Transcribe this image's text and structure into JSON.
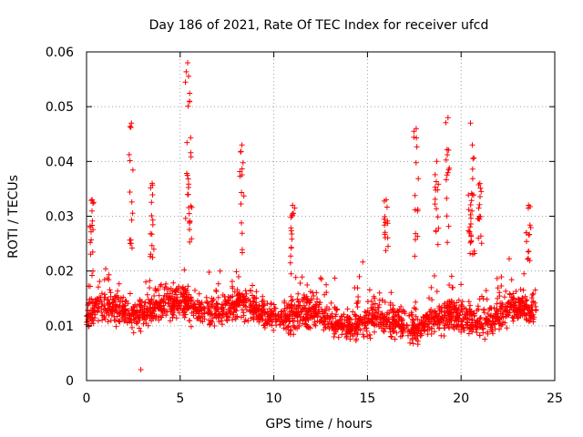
{
  "chart_data": {
    "type": "scatter",
    "title": "Day 186 of 2021, Rate Of TEC Index for receiver ufcd",
    "xlabel": "GPS time / hours",
    "ylabel": "ROTI / TECUs",
    "xlim": [
      0,
      25
    ],
    "ylim": [
      0,
      0.06
    ],
    "xticks": [
      0,
      5,
      10,
      15,
      20,
      25
    ],
    "yticks": [
      0,
      0.01,
      0.02,
      0.03,
      0.04,
      0.05,
      0.06
    ],
    "xtick_labels": [
      "0",
      "5",
      "10",
      "15",
      "20",
      "25"
    ],
    "ytick_labels": [
      "0",
      "0.01",
      "0.02",
      "0.03",
      "0.04",
      "0.05",
      "0.06"
    ],
    "grid": true,
    "marker": "+",
    "color": "#ff0000",
    "series": [
      {
        "name": "ROTI",
        "x_range": [
          0,
          24
        ],
        "baseline_mean": 0.012,
        "bulk_range": [
          0.005,
          0.02
        ],
        "spikes": [
          {
            "x": 0.3,
            "y": 0.033
          },
          {
            "x": 2.4,
            "y": 0.047
          },
          {
            "x": 3.5,
            "y": 0.036
          },
          {
            "x": 5.4,
            "y": 0.058
          },
          {
            "x": 5.5,
            "y": 0.051
          },
          {
            "x": 8.3,
            "y": 0.043
          },
          {
            "x": 11.0,
            "y": 0.032
          },
          {
            "x": 16.0,
            "y": 0.033
          },
          {
            "x": 17.6,
            "y": 0.046
          },
          {
            "x": 18.7,
            "y": 0.04
          },
          {
            "x": 19.3,
            "y": 0.048
          },
          {
            "x": 20.5,
            "y": 0.047
          },
          {
            "x": 20.6,
            "y": 0.043
          },
          {
            "x": 21.0,
            "y": 0.036
          },
          {
            "x": 23.6,
            "y": 0.032
          }
        ],
        "min_point": {
          "x": 2.9,
          "y": 0.002
        }
      }
    ]
  }
}
